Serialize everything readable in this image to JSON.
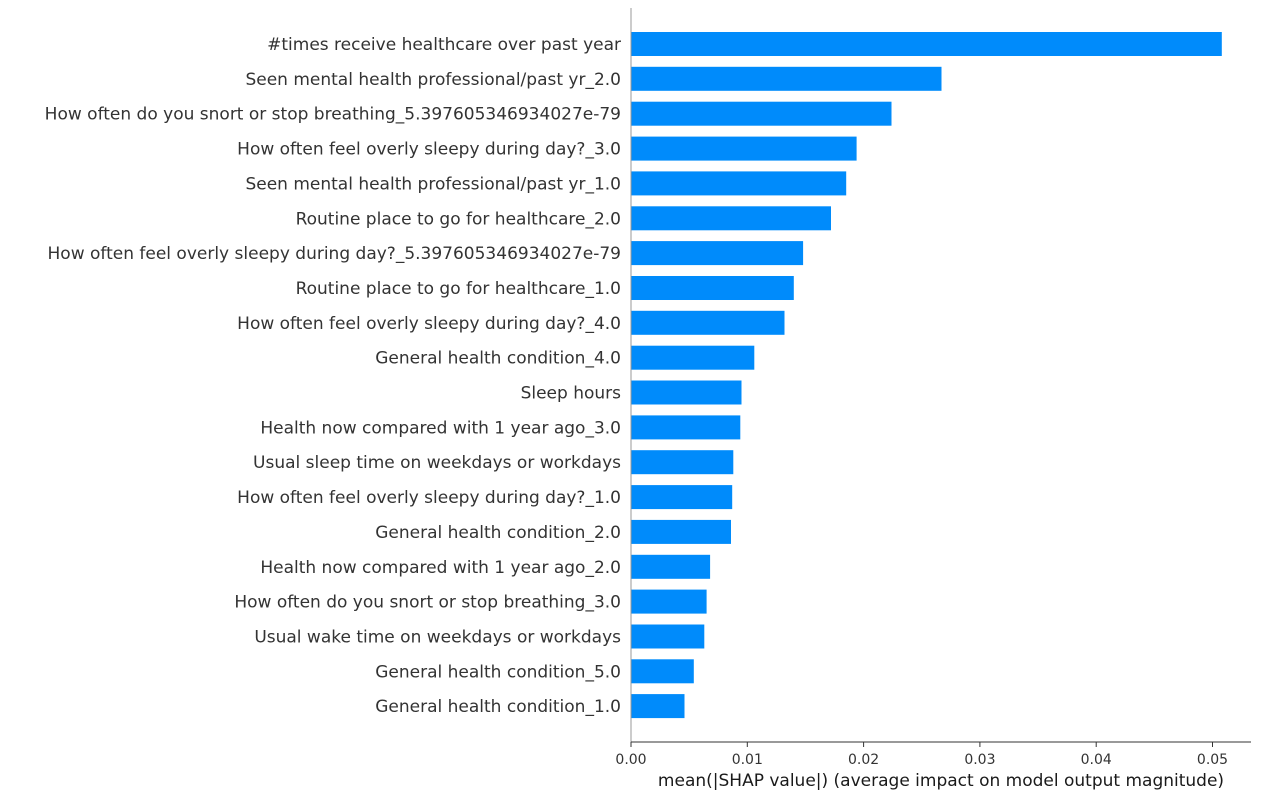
{
  "chart_data": {
    "type": "bar",
    "orientation": "horizontal",
    "title": "",
    "xlabel": "mean(|SHAP value|) (average impact on model output magnitude)",
    "ylabel": "",
    "xlim": [
      0,
      0.0533
    ],
    "xticks": [
      0.0,
      0.01,
      0.02,
      0.03,
      0.04,
      0.05
    ],
    "xtick_labels": [
      "0.00",
      "0.01",
      "0.02",
      "0.03",
      "0.04",
      "0.05"
    ],
    "grid": false,
    "legend": "none",
    "bar_color": "#008bfb",
    "categories": [
      "#times receive healthcare over past year",
      "Seen mental health professional/past yr_2.0",
      "How often do you snort or stop breathing_5.397605346934027e-79",
      "How often feel overly sleepy during day?_3.0",
      "Seen mental health professional/past yr_1.0",
      "Routine place to go for healthcare_2.0",
      "How often feel overly sleepy during day?_5.397605346934027e-79",
      "Routine place to go for healthcare_1.0",
      "How often feel overly sleepy during day?_4.0",
      "General health condition_4.0",
      "Sleep hours",
      "Health now compared with 1 year ago_3.0",
      "Usual sleep time on weekdays or workdays",
      "How often feel overly sleepy during day?_1.0",
      "General health condition_2.0",
      "Health now compared with 1 year ago_2.0",
      "How often do you snort or stop breathing_3.0",
      "Usual wake time on weekdays or workdays",
      "General health condition_5.0",
      "General health condition_1.0"
    ],
    "values": [
      0.0508,
      0.0267,
      0.0224,
      0.0194,
      0.0185,
      0.0172,
      0.0148,
      0.014,
      0.0132,
      0.0106,
      0.0095,
      0.0094,
      0.0088,
      0.0087,
      0.0086,
      0.0068,
      0.0065,
      0.0063,
      0.0054,
      0.0046
    ]
  }
}
